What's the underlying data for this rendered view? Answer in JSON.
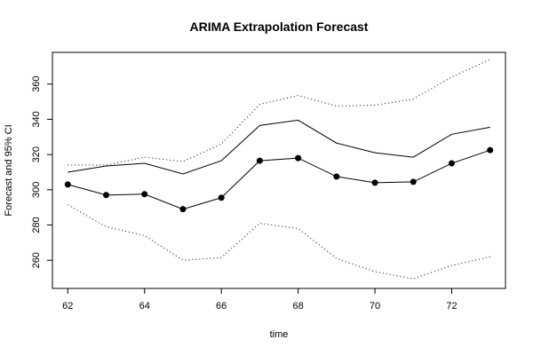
{
  "chart_data": {
    "type": "line",
    "title": "ARIMA Extrapolation Forecast",
    "xlabel": "time",
    "ylabel": "Forecast and 95% CI",
    "xlim": [
      61.6,
      73.4
    ],
    "ylim": [
      244,
      378
    ],
    "x_ticks": [
      62,
      64,
      66,
      68,
      70,
      72
    ],
    "y_ticks": [
      260,
      280,
      300,
      320,
      340,
      360
    ],
    "x": [
      62,
      63,
      64,
      65,
      66,
      67,
      68,
      69,
      70,
      71,
      72,
      73
    ],
    "series": [
      {
        "role": "forecast",
        "style": "line-points",
        "values": [
          303.0,
          297.0,
          297.5,
          289.0,
          295.5,
          316.5,
          318.0,
          307.5,
          304.0,
          304.5,
          315.0,
          322.5
        ]
      },
      {
        "role": "upper",
        "style": "solid",
        "values": [
          310.0,
          313.5,
          315.0,
          309.0,
          316.5,
          336.5,
          339.5,
          326.5,
          321.0,
          318.5,
          331.5,
          335.5
        ]
      },
      {
        "role": "upper95",
        "style": "dotted",
        "values": [
          314.0,
          314.0,
          318.5,
          316.0,
          326.0,
          348.5,
          353.5,
          347.5,
          348.0,
          351.5,
          364.0,
          374.0
        ]
      },
      {
        "role": "lower95",
        "style": "dotted",
        "values": [
          291.5,
          279.0,
          274.0,
          260.0,
          261.5,
          281.0,
          278.0,
          261.0,
          253.5,
          249.5,
          257.0,
          262.0
        ]
      }
    ],
    "colors": {
      "lines": "#000000",
      "points": "#000000"
    },
    "grid": false,
    "legend": "none"
  }
}
